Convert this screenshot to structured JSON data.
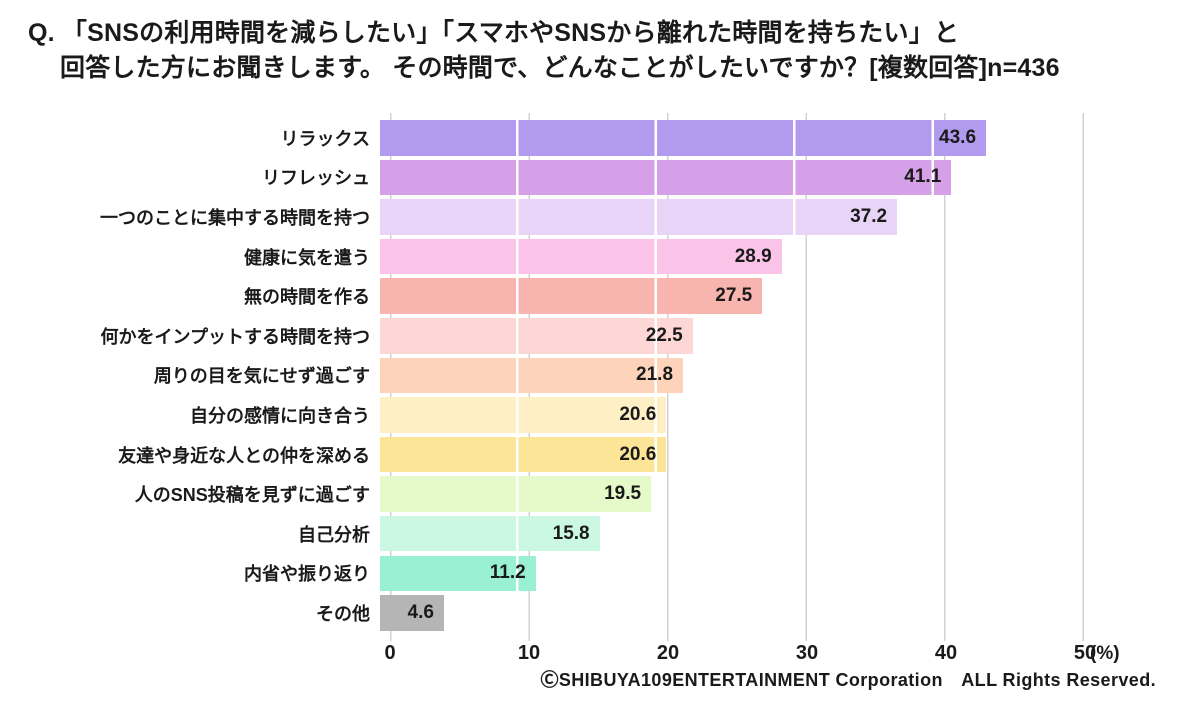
{
  "title": {
    "line1": "Q. 「SNSの利用時間を減らしたい」「スマホやSNSから離れた時間を持ちたい」と",
    "line2": "回答した方にお聞きします。 その時間で、どんなことがしたいですか？[複数回答]n=436"
  },
  "chart_data": {
    "type": "bar",
    "orientation": "horizontal",
    "n": 436,
    "categories": [
      "リラックス",
      "リフレッシュ",
      "一つのことに集中する時間を持つ",
      "健康に気を遣う",
      "無の時間を作る",
      "何かをインプットする時間を持つ",
      "周りの目を気にせず過ごす",
      "自分の感情に向き合う",
      "友達や身近な人との仲を深める",
      "人のSNS投稿を見ずに過ごす",
      "自己分析",
      "内省や振り返り",
      "その他"
    ],
    "values": [
      43.6,
      41.1,
      37.2,
      28.9,
      27.5,
      22.5,
      21.8,
      20.6,
      20.6,
      19.5,
      15.8,
      11.2,
      4.6
    ],
    "colors": [
      "#b29bef",
      "#d5a0e8",
      "#e7d4f6",
      "#fcc3e8",
      "#f8b4ae",
      "#fcd7d5",
      "#fdd4ba",
      "#feefc4",
      "#fde598",
      "#e6f9c8",
      "#cbf8e3",
      "#9af0d2",
      "#b5b5b5"
    ],
    "xlim": [
      0,
      50
    ],
    "xticks": [
      0,
      10,
      20,
      30,
      40,
      50
    ],
    "xtick_unit": "(%)",
    "xlabel": "",
    "ylabel": "",
    "grid": true,
    "legend": false,
    "value_label_position": "inside-end",
    "gridline_color": "#d2d2d2"
  },
  "footer": {
    "text": "ⒸSHIBUYA109ENTERTAINMENT Corporation　ALL Rights Reserved."
  }
}
